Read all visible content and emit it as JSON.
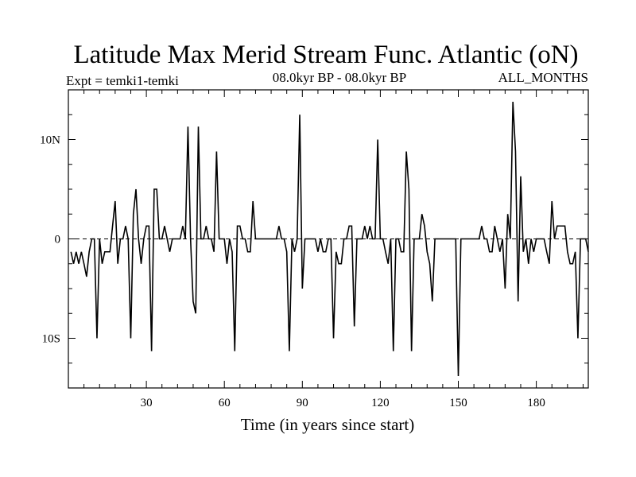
{
  "chart_data": {
    "type": "line",
    "title": "Latitude Max Merid Stream Func. Atlantic (oN)",
    "subtitle_left": "Expt = temki1-temki",
    "subtitle_center": "08.0kyr BP - 08.0kyr BP",
    "subtitle_right": "ALL_MONTHS",
    "xlabel": "Time (in years since start)",
    "ylabel": "",
    "xlim": [
      0,
      200
    ],
    "ylim": [
      -15,
      15
    ],
    "x_ticks": [
      30,
      60,
      90,
      120,
      150,
      180
    ],
    "x_tick_labels": [
      "30",
      "60",
      "90",
      "120",
      "150",
      "180"
    ],
    "y_ticks": [
      10,
      0,
      -10
    ],
    "y_tick_labels": [
      "10N",
      "0",
      "10S"
    ],
    "reference_line": 0,
    "series": [
      {
        "name": "latitude",
        "x": [
          1,
          2,
          3,
          4,
          5,
          6,
          7,
          8,
          9,
          10,
          11,
          12,
          13,
          14,
          15,
          16,
          17,
          18,
          19,
          20,
          21,
          22,
          23,
          24,
          25,
          26,
          27,
          28,
          29,
          30,
          31,
          32,
          33,
          34,
          35,
          36,
          37,
          38,
          39,
          40,
          41,
          42,
          43,
          44,
          45,
          46,
          47,
          48,
          49,
          50,
          51,
          52,
          53,
          54,
          55,
          56,
          57,
          58,
          59,
          60,
          61,
          62,
          63,
          64,
          65,
          66,
          67,
          68,
          69,
          70,
          71,
          72,
          73,
          74,
          75,
          76,
          77,
          78,
          79,
          80,
          81,
          82,
          83,
          84,
          85,
          86,
          87,
          88,
          89,
          90,
          91,
          92,
          93,
          94,
          95,
          96,
          97,
          98,
          99,
          100,
          101,
          102,
          103,
          104,
          105,
          106,
          107,
          108,
          109,
          110,
          111,
          112,
          113,
          114,
          115,
          116,
          117,
          118,
          119,
          120,
          121,
          122,
          123,
          124,
          125,
          126,
          127,
          128,
          129,
          130,
          131,
          132,
          133,
          134,
          135,
          136,
          137,
          138,
          139,
          140,
          141,
          142,
          143,
          144,
          145,
          146,
          147,
          148,
          149,
          150,
          151,
          152,
          153,
          154,
          155,
          156,
          157,
          158,
          159,
          160,
          161,
          162,
          163,
          164,
          165,
          166,
          167,
          168,
          169,
          170,
          171,
          172,
          173,
          174,
          175,
          176,
          177,
          178,
          179,
          180,
          181,
          182,
          183,
          184,
          185,
          186,
          187,
          188,
          189,
          190,
          191,
          192,
          193,
          194,
          195,
          196,
          197,
          198,
          199,
          200
        ],
        "values": [
          -1.3,
          -2.5,
          -1.3,
          -2.5,
          -1.3,
          -2.5,
          -3.8,
          -1.3,
          0,
          0,
          -10,
          0,
          -2.5,
          -1.3,
          -1.3,
          -1.3,
          1.3,
          3.8,
          -2.5,
          0,
          0,
          1.3,
          0,
          -10,
          2.5,
          5,
          0,
          -2.5,
          0,
          1.3,
          1.3,
          -11.3,
          5,
          5,
          0,
          0,
          1.3,
          0,
          -1.3,
          0,
          0,
          0,
          0,
          1.3,
          0,
          11.3,
          0,
          -6.3,
          -7.5,
          11.3,
          0,
          0,
          1.3,
          0,
          0,
          -1.3,
          8.8,
          0,
          0,
          0,
          -2.5,
          0,
          -1.3,
          -11.3,
          1.3,
          1.3,
          0,
          0,
          -1.3,
          -1.3,
          3.8,
          0,
          0,
          0,
          0,
          0,
          0,
          0,
          0,
          0,
          1.3,
          0,
          0,
          -1.3,
          -11.3,
          0,
          -1.3,
          0,
          12.5,
          -5,
          0,
          0,
          0,
          0,
          0,
          -1.3,
          0,
          -1.3,
          -1.3,
          0,
          0,
          -10,
          -1.3,
          -2.5,
          -2.5,
          0,
          0,
          1.3,
          1.3,
          -8.8,
          0,
          0,
          0,
          1.3,
          0,
          1.3,
          0,
          0,
          10,
          0,
          0,
          -1.3,
          -2.5,
          0,
          -11.3,
          0,
          0,
          -1.3,
          -1.3,
          8.8,
          5,
          -11.3,
          0,
          0,
          0,
          2.5,
          1.3,
          -1.3,
          -2.5,
          -6.3,
          0,
          0,
          0,
          0,
          0,
          0,
          0,
          0,
          0,
          -13.8,
          0,
          0,
          0,
          0,
          0,
          0,
          0,
          0,
          1.3,
          0,
          0,
          -1.3,
          -1.3,
          1.3,
          0,
          -1.3,
          0,
          -5,
          2.5,
          0,
          13.8,
          8.8,
          -6.3,
          6.3,
          -1.3,
          0,
          -2.5,
          0,
          -1.3,
          0,
          0,
          0,
          0,
          -1.3,
          -2.5,
          3.8,
          0,
          1.3,
          1.3,
          1.3,
          1.3,
          -1.3,
          -2.5,
          -2.5,
          -1.3,
          -10,
          0,
          0,
          0,
          -1.3
        ]
      }
    ]
  }
}
